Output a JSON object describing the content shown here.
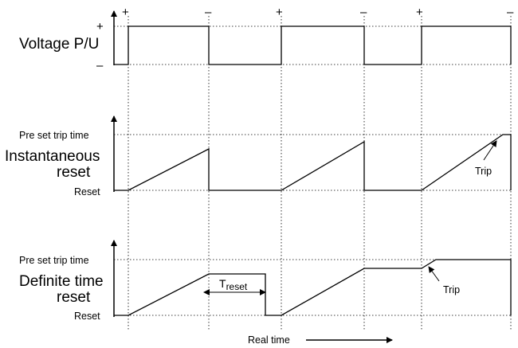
{
  "voltage_panel": {
    "title": "Voltage P/U",
    "plus": "+",
    "minus": "–",
    "top_signs": [
      "+",
      "–",
      "+",
      "–",
      "+",
      "–"
    ]
  },
  "instantaneous_panel": {
    "title_line1": "Instantaneous",
    "title_line2": "reset",
    "preset_label": "Pre set trip time",
    "reset_label": "Reset",
    "trip_label": "Trip"
  },
  "definite_panel": {
    "title_line1": "Definite time",
    "title_line2": "reset",
    "preset_label": "Pre set trip time",
    "reset_label": "Reset",
    "trip_label": "Trip",
    "treset_main": "T",
    "treset_sub": "reset"
  },
  "time_axis": {
    "label": "Real time"
  }
}
